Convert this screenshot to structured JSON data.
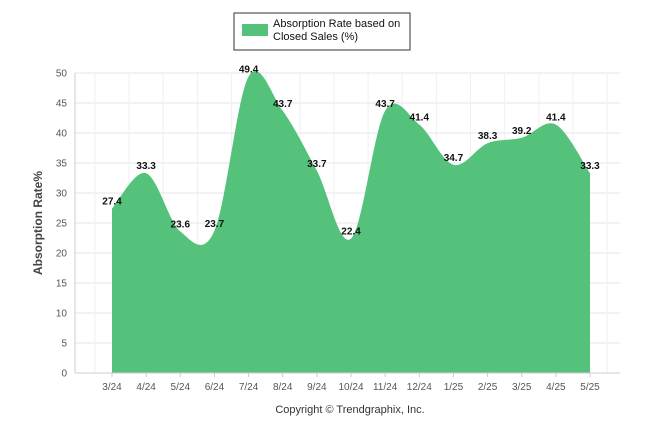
{
  "chart_data": {
    "type": "area",
    "categories": [
      "3/24",
      "4/24",
      "5/24",
      "6/24",
      "7/24",
      "8/24",
      "9/24",
      "10/24",
      "11/24",
      "12/24",
      "1/25",
      "2/25",
      "3/25",
      "4/25",
      "5/25"
    ],
    "series": [
      {
        "name": "Absorption Rate based on Closed Sales (%)",
        "values": [
          27.4,
          33.3,
          23.6,
          23.7,
          49.4,
          43.7,
          33.7,
          22.4,
          43.7,
          41.4,
          34.7,
          38.3,
          39.2,
          41.4,
          33.3
        ]
      }
    ],
    "ylabel": "Absorption Rate%",
    "ylim": [
      0,
      50
    ],
    "yticks": [
      0,
      5,
      10,
      15,
      20,
      25,
      30,
      35,
      40,
      45,
      50
    ],
    "legend": {
      "line1": "Absorption Rate based on",
      "line2": "Closed Sales (%)",
      "placement": "top"
    },
    "footer": "Copyright © Trendgraphix, Inc.",
    "colors": {
      "fill": "#55c27c",
      "grid": "#e6e6e6",
      "axis": "#cccccc"
    }
  }
}
